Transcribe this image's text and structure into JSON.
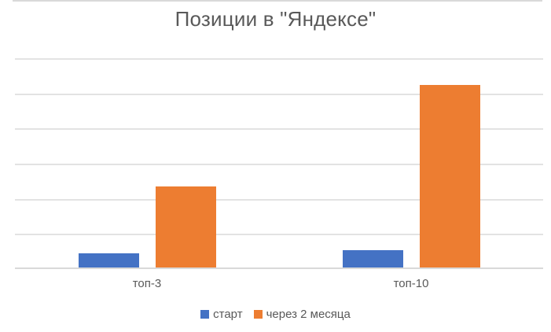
{
  "chart_data": {
    "type": "bar",
    "title": "Позиции в \"Яндексе\"",
    "categories": [
      "топ-3",
      "топ-10"
    ],
    "series": [
      {
        "key": "start",
        "name": "старт",
        "color": "#4472C4",
        "values": [
          4,
          5
        ]
      },
      {
        "key": "after-2-months",
        "name": "через 2 месяца",
        "color": "#ED7D31",
        "values": [
          23,
          52
        ]
      }
    ],
    "ylim": [
      0,
      60
    ],
    "gridline_step": 10,
    "grid": true,
    "y_axis_labels_visible": false,
    "legend_position": "bottom",
    "colors": {
      "title_text": "#595959",
      "axis_text": "#595959",
      "gridline": "#E3E3E3",
      "axis_line": "#D9D9D9",
      "background": "#FFFFFF"
    }
  }
}
